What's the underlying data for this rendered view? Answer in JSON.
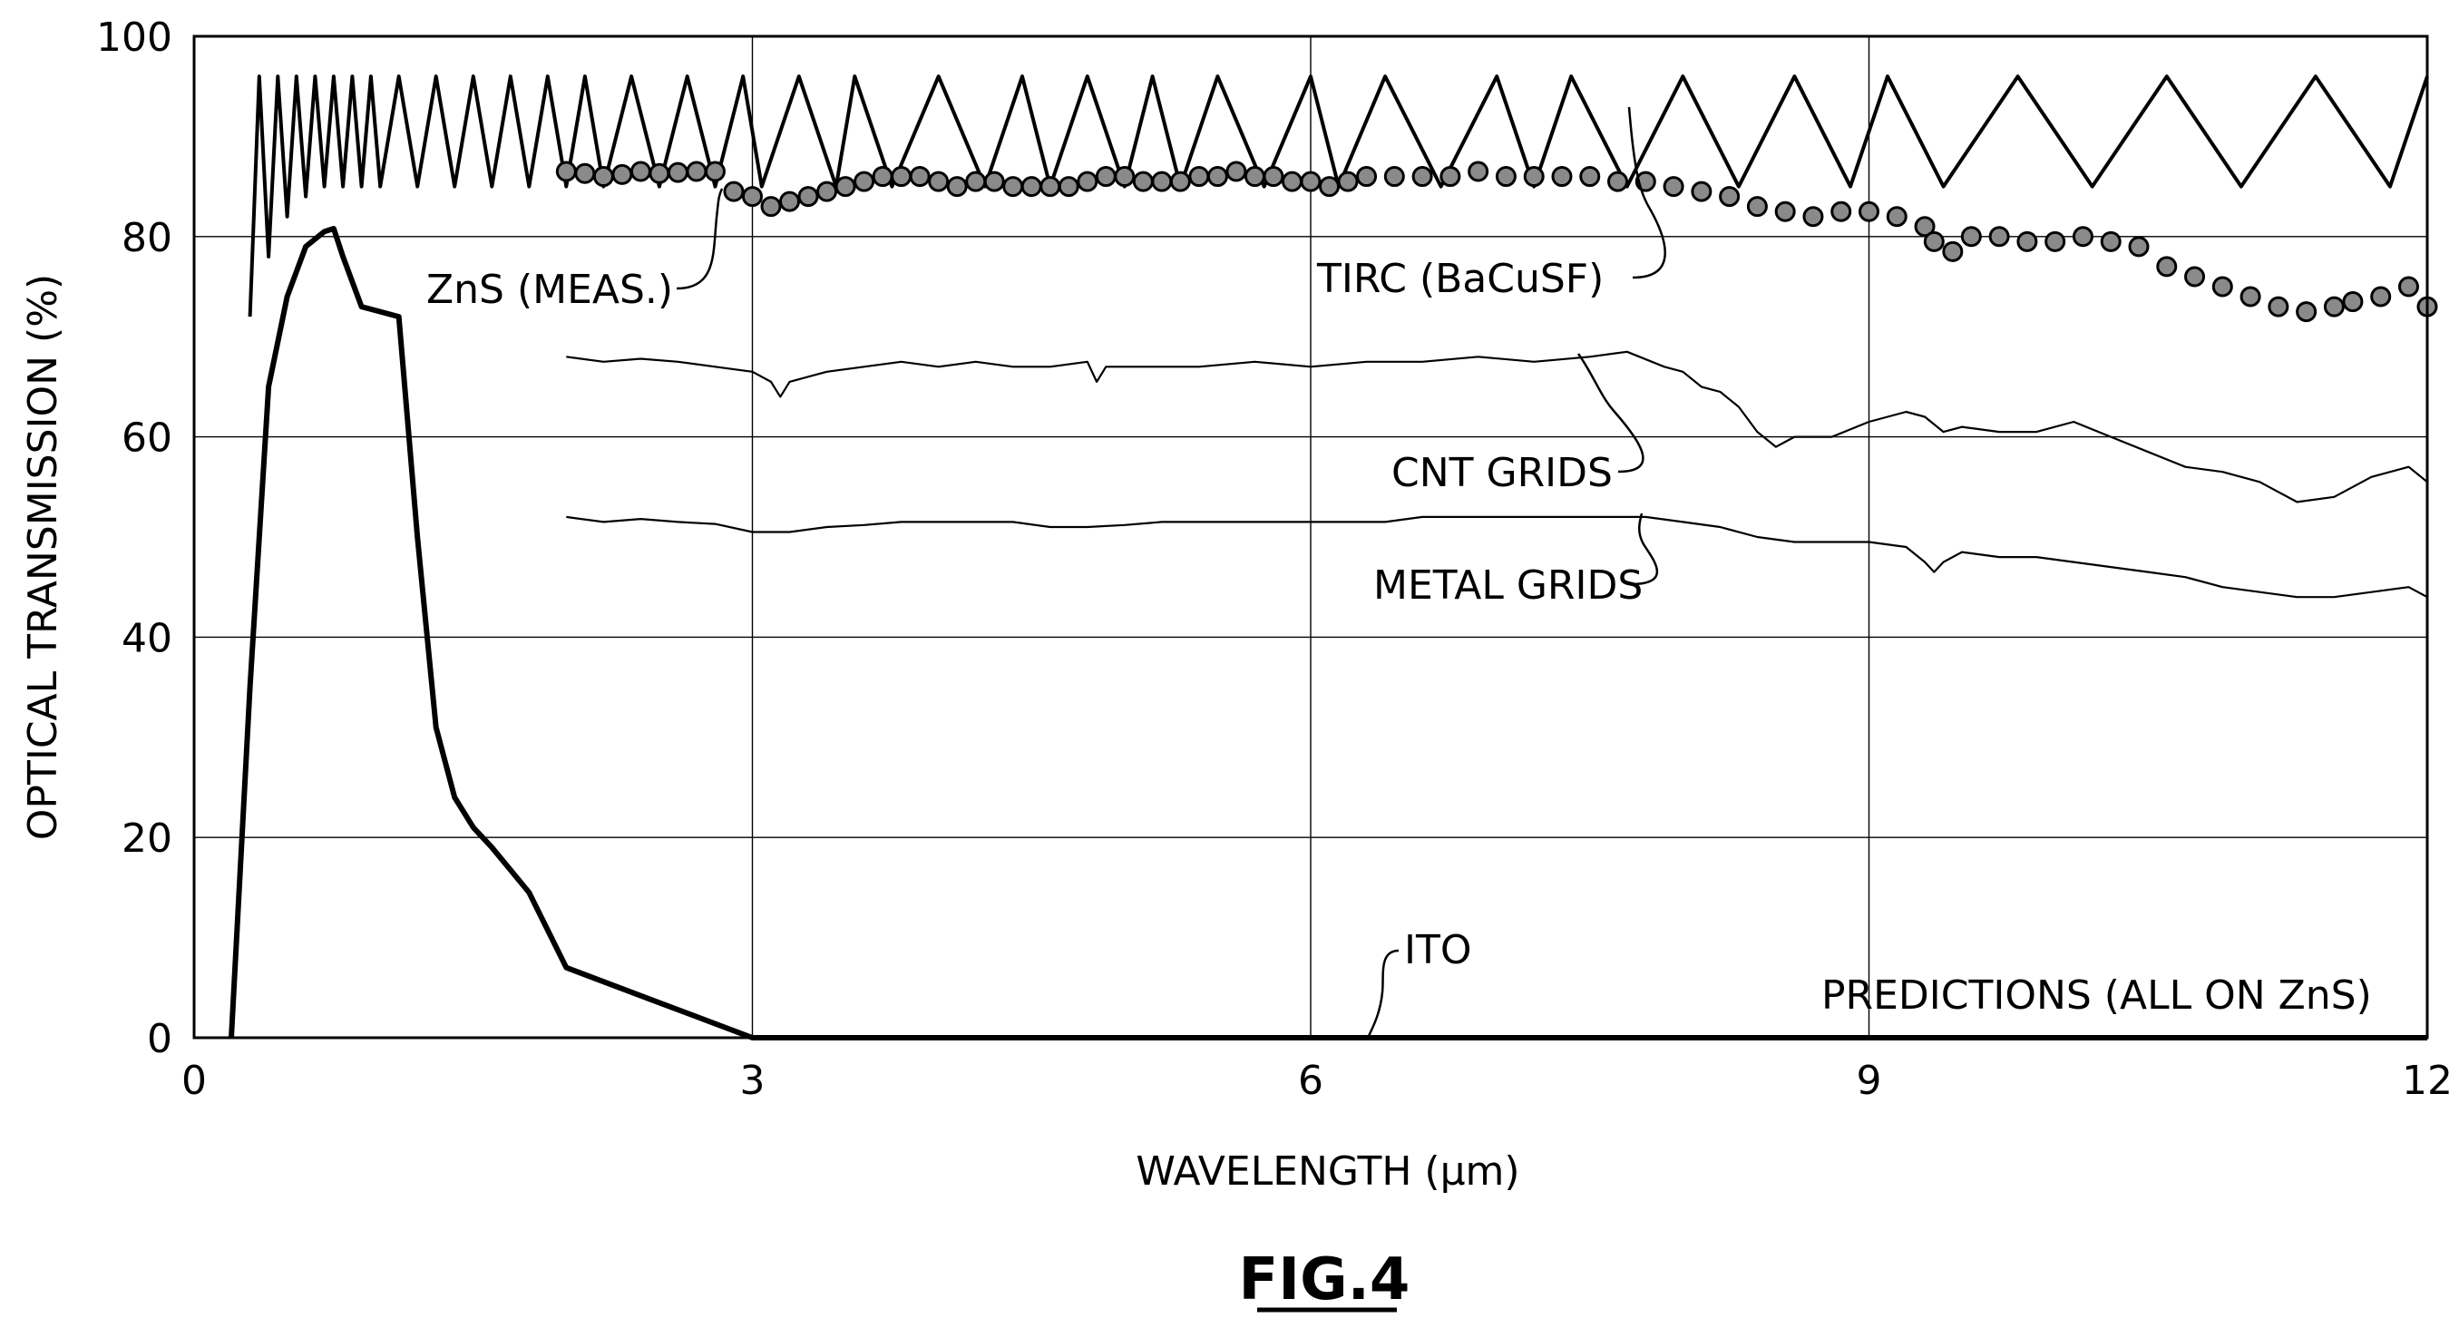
{
  "figure_label": "FIG.4",
  "chart_data": {
    "type": "line",
    "title": "",
    "xlabel": "WAVELENGTH (μm)",
    "ylabel": "OPTICAL TRANSMISSION (%)",
    "xlim": [
      0,
      12
    ],
    "ylim": [
      0,
      100
    ],
    "xticks": [
      0,
      3,
      6,
      9,
      12
    ],
    "yticks": [
      0,
      20,
      40,
      60,
      80,
      100
    ],
    "grid": true,
    "note": "PREDICTIONS (ALL ON ZnS)",
    "series": [
      {
        "name": "TIRC (BaCuSF)",
        "style": "line",
        "x": [
          0.3,
          0.35,
          0.4,
          0.45,
          0.5,
          0.55,
          0.6,
          0.65,
          0.7,
          0.75,
          0.8,
          0.85,
          0.9,
          0.95,
          1.0,
          1.1,
          1.2,
          1.3,
          1.4,
          1.5,
          1.6,
          1.7,
          1.8,
          1.9,
          2.0,
          2.1,
          2.2,
          2.35,
          2.5,
          2.65,
          2.8,
          2.95,
          3.05,
          3.25,
          3.45,
          3.55,
          3.75,
          4.0,
          4.25,
          4.45,
          4.6,
          4.8,
          5.0,
          5.15,
          5.3,
          5.5,
          5.75,
          6.0,
          6.15,
          6.4,
          6.7,
          7.0,
          7.2,
          7.4,
          7.7,
          8.0,
          8.3,
          8.6,
          8.9,
          9.1,
          9.4,
          9.8,
          10.2,
          10.6,
          11.0,
          11.4,
          11.8,
          12.0
        ],
        "y": [
          72,
          96,
          78,
          96,
          82,
          96,
          84,
          96,
          85,
          96,
          85,
          96,
          85,
          96,
          85,
          96,
          85,
          96,
          85,
          96,
          85,
          96,
          85,
          96,
          85,
          96,
          85,
          96,
          85,
          96,
          85,
          96,
          85,
          96,
          85,
          96,
          85,
          96,
          85,
          96,
          85,
          96,
          85,
          96,
          85,
          96,
          85,
          96,
          85,
          96,
          85,
          96,
          85,
          96,
          85,
          96,
          85,
          96,
          85,
          96,
          85,
          96,
          85,
          96,
          85,
          96,
          85,
          96
        ]
      },
      {
        "name": "ZnS (MEAS.)",
        "style": "dots",
        "x": [
          2.0,
          2.1,
          2.2,
          2.3,
          2.4,
          2.5,
          2.6,
          2.7,
          2.8,
          2.9,
          3.0,
          3.1,
          3.2,
          3.3,
          3.4,
          3.5,
          3.6,
          3.7,
          3.8,
          3.9,
          4.0,
          4.1,
          4.2,
          4.3,
          4.4,
          4.5,
          4.6,
          4.7,
          4.8,
          4.9,
          5.0,
          5.1,
          5.2,
          5.3,
          5.4,
          5.5,
          5.6,
          5.7,
          5.8,
          5.9,
          6.0,
          6.1,
          6.2,
          6.3,
          6.45,
          6.6,
          6.75,
          6.9,
          7.05,
          7.2,
          7.35,
          7.5,
          7.65,
          7.8,
          7.95,
          8.1,
          8.25,
          8.4,
          8.55,
          8.7,
          8.85,
          9.0,
          9.15,
          9.3,
          9.35,
          9.45,
          9.55,
          9.7,
          9.85,
          10.0,
          10.15,
          10.3,
          10.45,
          10.6,
          10.75,
          10.9,
          11.05,
          11.2,
          11.35,
          11.5,
          11.6,
          11.75,
          11.9,
          12.0
        ],
        "y": [
          86.5,
          86.3,
          86,
          86.2,
          86.5,
          86.3,
          86.4,
          86.5,
          86.5,
          84.5,
          84,
          83,
          83.5,
          84,
          84.5,
          85,
          85.5,
          86,
          86,
          86,
          85.5,
          85,
          85.5,
          85.5,
          85,
          85,
          85,
          85,
          85.5,
          86,
          86,
          85.5,
          85.5,
          85.5,
          86,
          86,
          86.5,
          86,
          86,
          85.5,
          85.5,
          85,
          85.5,
          86,
          86,
          86,
          86,
          86.5,
          86,
          86,
          86,
          86,
          85.5,
          85.5,
          85,
          84.5,
          84,
          83,
          82.5,
          82,
          82.5,
          82.5,
          82,
          81,
          79.5,
          78.5,
          80,
          80,
          79.5,
          79.5,
          80,
          79.5,
          79,
          77,
          76,
          75,
          74,
          73,
          72.5,
          73,
          73.5,
          74,
          75,
          73
        ]
      },
      {
        "name": "CNT GRIDS",
        "style": "line-thin",
        "x": [
          2.0,
          2.2,
          2.4,
          2.6,
          2.8,
          3.0,
          3.1,
          3.15,
          3.2,
          3.4,
          3.6,
          3.8,
          4.0,
          4.2,
          4.4,
          4.6,
          4.8,
          4.85,
          4.9,
          5.1,
          5.4,
          5.7,
          6.0,
          6.3,
          6.6,
          6.9,
          7.2,
          7.5,
          7.7,
          7.9,
          8.0,
          8.1,
          8.2,
          8.3,
          8.4,
          8.5,
          8.6,
          8.8,
          9.0,
          9.1,
          9.2,
          9.3,
          9.4,
          9.5,
          9.7,
          9.9,
          10.1,
          10.3,
          10.5,
          10.7,
          10.9,
          11.1,
          11.3,
          11.5,
          11.7,
          11.9,
          12.0
        ],
        "y": [
          68,
          67.5,
          67.8,
          67.5,
          67,
          66.5,
          65.5,
          64,
          65.5,
          66.5,
          67,
          67.5,
          67,
          67.5,
          67,
          67,
          67.5,
          65.5,
          67,
          67,
          67,
          67.5,
          67,
          67.5,
          67.5,
          68,
          67.5,
          68,
          68.5,
          67,
          66.5,
          65,
          64.5,
          63,
          60.5,
          59,
          60,
          60,
          61.5,
          62,
          62.5,
          62,
          60.5,
          61,
          60.5,
          60.5,
          61.5,
          60,
          58.5,
          57,
          56.5,
          55.5,
          53.5,
          54,
          56,
          57,
          55.5
        ]
      },
      {
        "name": "METAL GRIDS",
        "style": "line-thin",
        "x": [
          2.0,
          2.2,
          2.4,
          2.6,
          2.8,
          3.0,
          3.2,
          3.4,
          3.6,
          3.8,
          4.0,
          4.2,
          4.4,
          4.6,
          4.8,
          5.0,
          5.2,
          5.4,
          5.6,
          5.8,
          6.0,
          6.2,
          6.4,
          6.6,
          6.8,
          7.0,
          7.2,
          7.4,
          7.6,
          7.8,
          8.0,
          8.2,
          8.4,
          8.6,
          8.8,
          9.0,
          9.2,
          9.3,
          9.35,
          9.4,
          9.5,
          9.7,
          9.9,
          10.1,
          10.3,
          10.5,
          10.7,
          10.9,
          11.1,
          11.3,
          11.5,
          11.7,
          11.9,
          12.0
        ],
        "y": [
          52,
          51.5,
          51.8,
          51.5,
          51.3,
          50.5,
          50.5,
          51,
          51.2,
          51.5,
          51.5,
          51.5,
          51.5,
          51,
          51,
          51.2,
          51.5,
          51.5,
          51.5,
          51.5,
          51.5,
          51.5,
          51.5,
          52,
          52,
          52,
          52,
          52,
          52,
          52,
          51.5,
          51,
          50,
          49.5,
          49.5,
          49.5,
          49,
          47.5,
          46.5,
          47.5,
          48.5,
          48,
          48,
          47.5,
          47,
          46.5,
          46,
          45,
          44.5,
          44,
          44,
          44.5,
          45,
          44
        ]
      },
      {
        "name": "ITO",
        "style": "line-bold",
        "x": [
          0.2,
          0.3,
          0.4,
          0.5,
          0.6,
          0.7,
          0.75,
          0.8,
          0.9,
          1.0,
          1.1,
          1.2,
          1.3,
          1.4,
          1.5,
          1.6,
          1.8,
          2.0,
          2.5,
          3.0,
          4.0,
          6.0,
          8.0,
          10.0,
          12.0
        ],
        "y": [
          0,
          35,
          65,
          74,
          79,
          80.5,
          80.8,
          78,
          73,
          72.5,
          72,
          50,
          31,
          24,
          21,
          19,
          14.5,
          7,
          3.5,
          0,
          0,
          0,
          0,
          0,
          0
        ]
      }
    ],
    "annotations": [
      {
        "text": "ZnS (MEAS.)"
      },
      {
        "text": "TIRC (BaCuSF)"
      },
      {
        "text": "CNT GRIDS"
      },
      {
        "text": "METAL GRIDS"
      },
      {
        "text": "ITO"
      }
    ]
  }
}
